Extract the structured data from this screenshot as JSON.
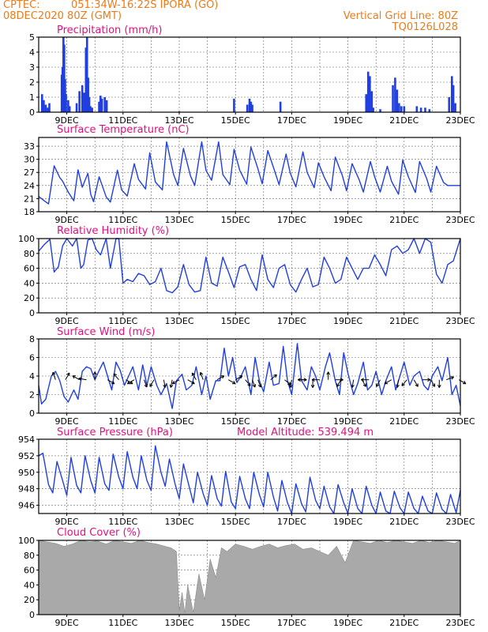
{
  "header": {
    "source": "CPTEC:",
    "location": "051:34W-16:22S  IPORA (GO)",
    "run_time": "08DEC2020 80Z (GMT)",
    "grid_note": "Vertical Grid Line: 80Z",
    "model_code": "TQ0126L028"
  },
  "colors": {
    "header": "#e87c1e",
    "titles": "#e0117f",
    "series": "#1f3fe0",
    "cloud_fill": "#a9a9a9"
  },
  "date_labels": [
    "9DEC",
    "11DEC",
    "13DEC",
    "15DEC",
    "17DEC",
    "19DEC",
    "21DEC",
    "23DEC"
  ],
  "chart_data": [
    {
      "id": "precip",
      "type": "bar",
      "title": "Precipitation (mm/h)",
      "ylim": [
        0,
        5
      ],
      "yticks": [
        0,
        1,
        2,
        3,
        4,
        5
      ],
      "x_days": [
        8.12,
        8.18,
        8.25,
        8.32,
        8.38,
        8.82,
        8.85,
        8.88,
        8.91,
        8.94,
        8.97,
        9.05,
        9.1,
        9.35,
        9.45,
        9.55,
        9.62,
        9.68,
        9.72,
        9.76,
        9.8,
        9.84,
        9.9,
        10.15,
        10.2,
        10.25,
        10.35,
        10.42,
        13.0,
        14.95,
        15.42,
        15.5,
        15.55,
        15.6,
        16.6,
        19.65,
        19.72,
        19.78,
        19.85,
        19.9,
        20.15,
        20.6,
        20.68,
        20.75,
        20.82,
        20.9,
        21.0,
        21.45,
        21.6,
        21.75,
        21.9,
        22.6,
        22.7,
        22.75,
        22.82
      ],
      "values": [
        1.2,
        0.8,
        0.5,
        0.3,
        0.6,
        2.5,
        3.0,
        5.0,
        4.5,
        2.2,
        1.2,
        0.8,
        0.4,
        0.6,
        1.4,
        1.8,
        1.3,
        4.3,
        5.0,
        2.3,
        1.0,
        0.4,
        0.3,
        0.7,
        1.1,
        0.9,
        1.0,
        0.8,
        0.05,
        0.9,
        0.5,
        0.9,
        0.7,
        0.5,
        0.7,
        1.2,
        2.7,
        2.4,
        1.4,
        0.3,
        0.2,
        1.8,
        2.3,
        1.5,
        0.6,
        0.4,
        0.4,
        0.4,
        0.3,
        0.3,
        0.2,
        1.0,
        2.4,
        1.8,
        0.6
      ]
    },
    {
      "id": "temperature",
      "type": "line",
      "title": "Surface Temperature (nC)",
      "ylim": [
        18,
        35
      ],
      "yticks": [
        18,
        21,
        24,
        27,
        30,
        33
      ],
      "days": [
        8.0,
        8.2,
        8.35,
        8.55,
        8.75,
        8.85,
        9.05,
        9.25,
        9.4,
        9.55,
        9.75,
        9.85,
        9.95,
        10.15,
        10.4,
        10.55,
        10.8,
        10.95,
        11.15,
        11.4,
        11.55,
        11.8,
        11.95,
        12.15,
        12.4,
        12.55,
        12.8,
        12.95,
        13.15,
        13.4,
        13.55,
        13.8,
        13.95,
        14.15,
        14.4,
        14.55,
        14.8,
        14.95,
        15.15,
        15.4,
        15.55,
        15.8,
        15.95,
        16.15,
        16.4,
        16.55,
        16.8,
        16.95,
        17.15,
        17.4,
        17.55,
        17.8,
        17.95,
        18.15,
        18.4,
        18.55,
        18.8,
        18.95,
        19.15,
        19.4,
        19.55,
        19.8,
        19.95,
        20.15,
        20.4,
        20.55,
        20.8,
        20.95,
        21.15,
        21.4,
        21.55,
        21.8,
        21.95,
        22.15,
        22.4,
        22.55,
        22.8,
        23.0
      ],
      "values": [
        21.5,
        20.5,
        19.8,
        28.5,
        25.8,
        25.0,
        22.5,
        20.5,
        27.6,
        23.6,
        26.8,
        22.0,
        20.3,
        26.0,
        21.4,
        20.2,
        27.5,
        23.0,
        21.6,
        29.0,
        25.4,
        23.2,
        31.5,
        24.8,
        23.0,
        34.0,
        26.5,
        24.0,
        32.5,
        26.2,
        24.0,
        34.0,
        27.5,
        25.2,
        34.0,
        26.5,
        24.2,
        32.3,
        27.5,
        24.3,
        32.8,
        27.8,
        24.4,
        32.0,
        27.2,
        24.2,
        31.2,
        26.8,
        23.7,
        31.7,
        27.0,
        23.5,
        29.2,
        26.0,
        22.8,
        30.5,
        26.3,
        22.8,
        29.0,
        25.3,
        22.5,
        29.5,
        26.0,
        22.5,
        28.4,
        25.0,
        22.0,
        29.8,
        26.0,
        22.4,
        29.5,
        25.6,
        22.5,
        28.4,
        24.7,
        24.0,
        24.0,
        24.0
      ]
    },
    {
      "id": "humidity",
      "type": "line",
      "title": "Relative Humidity (%)",
      "ylim": [
        0,
        100
      ],
      "yticks": [
        0,
        20,
        40,
        60,
        80,
        100
      ],
      "days": [
        8.0,
        8.2,
        8.4,
        8.55,
        8.7,
        8.85,
        9.0,
        9.2,
        9.35,
        9.5,
        9.6,
        9.75,
        9.9,
        10.05,
        10.2,
        10.4,
        10.55,
        10.75,
        10.85,
        11.0,
        11.15,
        11.35,
        11.55,
        11.75,
        11.95,
        12.15,
        12.35,
        12.55,
        12.75,
        12.95,
        13.15,
        13.35,
        13.55,
        13.75,
        13.95,
        14.15,
        14.35,
        14.55,
        14.75,
        14.95,
        15.15,
        15.35,
        15.55,
        15.75,
        15.95,
        16.15,
        16.35,
        16.55,
        16.75,
        16.95,
        17.15,
        17.35,
        17.55,
        17.75,
        17.95,
        18.15,
        18.35,
        18.55,
        18.75,
        18.95,
        19.15,
        19.35,
        19.55,
        19.75,
        19.95,
        20.15,
        20.35,
        20.55,
        20.75,
        20.95,
        21.15,
        21.35,
        21.55,
        21.75,
        21.95,
        22.15,
        22.35,
        22.55,
        22.75,
        23.0
      ],
      "values": [
        83,
        92,
        99,
        55,
        62,
        90,
        100,
        90,
        100,
        60,
        65,
        98,
        100,
        85,
        78,
        100,
        60,
        100,
        100,
        40,
        45,
        42,
        53,
        50,
        38,
        42,
        60,
        30,
        27,
        35,
        65,
        38,
        28,
        30,
        75,
        40,
        36,
        75,
        55,
        34,
        62,
        65,
        45,
        30,
        78,
        45,
        34,
        60,
        65,
        38,
        28,
        45,
        60,
        35,
        38,
        75,
        60,
        40,
        45,
        75,
        60,
        45,
        60,
        60,
        78,
        65,
        50,
        85,
        90,
        80,
        85,
        100,
        80,
        100,
        95,
        52,
        40,
        65,
        70,
        100
      ]
    },
    {
      "id": "wind",
      "type": "line",
      "title": "Surface Wind (m/s)",
      "ylim": [
        0,
        8
      ],
      "yticks": [
        0,
        2,
        4,
        6,
        8
      ],
      "days": [
        8.0,
        8.1,
        8.25,
        8.45,
        8.6,
        8.75,
        8.9,
        9.05,
        9.25,
        9.4,
        9.55,
        9.7,
        9.85,
        10.0,
        10.15,
        10.3,
        10.45,
        10.6,
        10.75,
        10.9,
        11.05,
        11.2,
        11.35,
        11.55,
        11.7,
        11.85,
        12.0,
        12.2,
        12.35,
        12.55,
        12.75,
        12.9,
        13.1,
        13.25,
        13.45,
        13.6,
        13.8,
        13.95,
        14.1,
        14.3,
        14.45,
        14.6,
        14.75,
        14.9,
        15.05,
        15.2,
        15.35,
        15.55,
        15.7,
        15.85,
        16.0,
        16.2,
        16.35,
        16.55,
        16.7,
        16.85,
        17.0,
        17.2,
        17.35,
        17.55,
        17.7,
        17.85,
        18.0,
        18.2,
        18.35,
        18.55,
        18.7,
        18.85,
        19.0,
        19.2,
        19.35,
        19.55,
        19.7,
        19.85,
        20.0,
        20.2,
        20.35,
        20.55,
        20.7,
        20.85,
        21.0,
        21.2,
        21.35,
        21.55,
        21.7,
        21.85,
        22.0,
        22.2,
        22.35,
        22.55,
        22.7,
        22.85,
        23.0
      ],
      "values": [
        3.0,
        1.0,
        1.5,
        4.0,
        4.5,
        3.5,
        1.8,
        1.2,
        2.5,
        1.5,
        4.5,
        5.0,
        4.8,
        3.6,
        4.6,
        5.5,
        4.0,
        2.5,
        5.5,
        4.6,
        3.0,
        4.0,
        5.0,
        2.5,
        5.2,
        3.0,
        5.0,
        3.0,
        2.0,
        3.2,
        0.5,
        3.5,
        4.2,
        2.5,
        3.0,
        5.0,
        2.0,
        4.0,
        1.5,
        3.5,
        3.5,
        7.0,
        4.0,
        6.0,
        3.3,
        4.0,
        5.0,
        2.0,
        6.0,
        3.5,
        2.3,
        5.5,
        3.0,
        3.2,
        7.2,
        3.5,
        2.0,
        7.5,
        3.5,
        2.5,
        5.0,
        4.0,
        2.5,
        5.0,
        6.5,
        3.5,
        2.0,
        6.5,
        4.3,
        2.0,
        3.2,
        5.5,
        2.5,
        3.0,
        4.5,
        2.0,
        3.5,
        5.0,
        2.5,
        4.0,
        5.5,
        3.0,
        4.0,
        4.5,
        3.0,
        2.5,
        4.0,
        5.0,
        3.5,
        6.0,
        2.0,
        3.0,
        0.8
      ],
      "arrows": [
        [
          8.6,
          200
        ],
        [
          8.95,
          150
        ],
        [
          9.45,
          240
        ],
        [
          9.7,
          260
        ],
        [
          10.0,
          180
        ],
        [
          10.45,
          60
        ],
        [
          10.85,
          220
        ],
        [
          11.1,
          60
        ],
        [
          11.4,
          300
        ],
        [
          11.75,
          20
        ],
        [
          12.1,
          330
        ],
        [
          12.45,
          10
        ],
        [
          12.75,
          350
        ],
        [
          13.0,
          300
        ],
        [
          13.3,
          60
        ],
        [
          13.6,
          210
        ],
        [
          13.85,
          200
        ],
        [
          14.35,
          120
        ],
        [
          14.75,
          60
        ],
        [
          15.0,
          120
        ],
        [
          15.35,
          40
        ],
        [
          15.6,
          20
        ],
        [
          15.8,
          20
        ],
        [
          16.25,
          130
        ],
        [
          16.75,
          50
        ],
        [
          17.0,
          350
        ],
        [
          17.25,
          90
        ],
        [
          17.5,
          270
        ],
        [
          17.75,
          0
        ],
        [
          18.0,
          270
        ],
        [
          18.3,
          180
        ],
        [
          18.55,
          90
        ],
        [
          18.75,
          330
        ],
        [
          19.2,
          350
        ],
        [
          19.5,
          30
        ],
        [
          19.75,
          270
        ],
        [
          20.15,
          330
        ],
        [
          20.55,
          300
        ],
        [
          20.8,
          350
        ],
        [
          21.1,
          320
        ],
        [
          21.35,
          30
        ],
        [
          21.65,
          90
        ],
        [
          21.95,
          30
        ],
        [
          22.25,
          0
        ],
        [
          22.5,
          110
        ],
        [
          22.95,
          60
        ]
      ]
    },
    {
      "id": "pressure",
      "type": "line",
      "title": "Surface Pressure (hPa)",
      "annotation": "Model Altitude: 539.494  m",
      "ylim": [
        945,
        954
      ],
      "yticks": [
        946,
        948,
        950,
        952,
        954
      ],
      "days": [
        8.0,
        8.15,
        8.35,
        8.5,
        8.65,
        8.85,
        9.0,
        9.15,
        9.35,
        9.5,
        9.65,
        9.85,
        10.0,
        10.15,
        10.35,
        10.5,
        10.65,
        10.85,
        11.0,
        11.15,
        11.35,
        11.5,
        11.65,
        11.85,
        12.0,
        12.15,
        12.35,
        12.5,
        12.65,
        12.85,
        13.0,
        13.15,
        13.35,
        13.5,
        13.65,
        13.85,
        14.0,
        14.15,
        14.35,
        14.5,
        14.65,
        14.85,
        15.0,
        15.15,
        15.35,
        15.5,
        15.65,
        15.85,
        16.0,
        16.15,
        16.35,
        16.5,
        16.65,
        16.85,
        17.0,
        17.15,
        17.35,
        17.5,
        17.65,
        17.85,
        18.0,
        18.15,
        18.35,
        18.5,
        18.65,
        18.85,
        19.0,
        19.15,
        19.35,
        19.5,
        19.65,
        19.85,
        20.0,
        20.15,
        20.35,
        20.5,
        20.65,
        20.85,
        21.0,
        21.15,
        21.35,
        21.5,
        21.65,
        21.85,
        22.0,
        22.15,
        22.35,
        22.5,
        22.65,
        22.85,
        23.0
      ],
      "values": [
        952.0,
        952.3,
        948.5,
        947.5,
        951.3,
        949.0,
        947.2,
        951.8,
        948.4,
        947.5,
        952.0,
        949.0,
        947.5,
        951.8,
        948.6,
        947.8,
        952.2,
        949.4,
        948.0,
        952.5,
        949.4,
        948.0,
        952.0,
        949.0,
        947.8,
        953.2,
        950.0,
        948.3,
        951.6,
        948.6,
        946.8,
        951.0,
        948.3,
        946.3,
        950.0,
        947.4,
        946.0,
        949.6,
        946.8,
        945.9,
        950.1,
        946.4,
        945.6,
        949.5,
        946.8,
        945.6,
        950.0,
        947.3,
        945.8,
        950.0,
        947.0,
        945.3,
        949.0,
        946.3,
        944.8,
        948.6,
        946.2,
        945.2,
        949.4,
        946.6,
        945.6,
        948.3,
        945.8,
        945.0,
        948.5,
        946.3,
        944.8,
        948.0,
        945.6,
        944.9,
        948.3,
        946.0,
        945.0,
        947.6,
        945.3,
        944.8,
        947.7,
        945.7,
        944.6,
        947.6,
        945.6,
        944.9,
        947.1,
        945.3,
        945.0,
        947.5,
        945.5,
        944.6,
        947.3,
        945.1,
        947.8
      ]
    },
    {
      "id": "cloud",
      "type": "area",
      "title": "Cloud Cover (%)",
      "ylim": [
        0,
        100
      ],
      "yticks": [
        0,
        20,
        40,
        60,
        80,
        100
      ],
      "days": [
        8.0,
        8.3,
        8.6,
        8.9,
        9.2,
        9.5,
        9.8,
        10.1,
        10.4,
        10.7,
        11.0,
        11.3,
        11.6,
        11.9,
        12.2,
        12.5,
        12.7,
        12.9,
        13.0,
        13.1,
        13.2,
        13.3,
        13.5,
        13.7,
        13.9,
        14.1,
        14.3,
        14.5,
        14.7,
        15.0,
        15.3,
        15.6,
        15.9,
        16.2,
        16.5,
        16.8,
        17.1,
        17.4,
        17.7,
        18.0,
        18.3,
        18.6,
        18.9,
        19.2,
        19.5,
        19.8,
        20.1,
        20.4,
        20.7,
        21.0,
        21.3,
        21.6,
        21.9,
        22.2,
        22.5,
        22.8,
        23.0
      ],
      "values": [
        100,
        98,
        96,
        92,
        95,
        100,
        98,
        99,
        95,
        100,
        98,
        96,
        100,
        97,
        95,
        92,
        90,
        85,
        5,
        30,
        2,
        40,
        3,
        55,
        20,
        75,
        50,
        90,
        85,
        95,
        92,
        88,
        92,
        95,
        90,
        93,
        95,
        88,
        90,
        85,
        80,
        92,
        70,
        100,
        98,
        96,
        100,
        97,
        100,
        98,
        96,
        100,
        97,
        100,
        98,
        96,
        100
      ]
    }
  ]
}
